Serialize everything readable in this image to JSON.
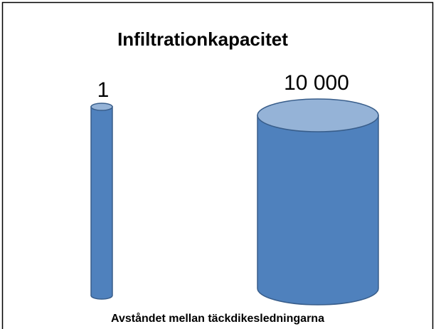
{
  "title": "Infiltrationkapacitet",
  "cylinders": [
    {
      "label": "1"
    },
    {
      "label": "10 000"
    }
  ],
  "caption": "Avståndet mellan täckdikesledningarna"
}
